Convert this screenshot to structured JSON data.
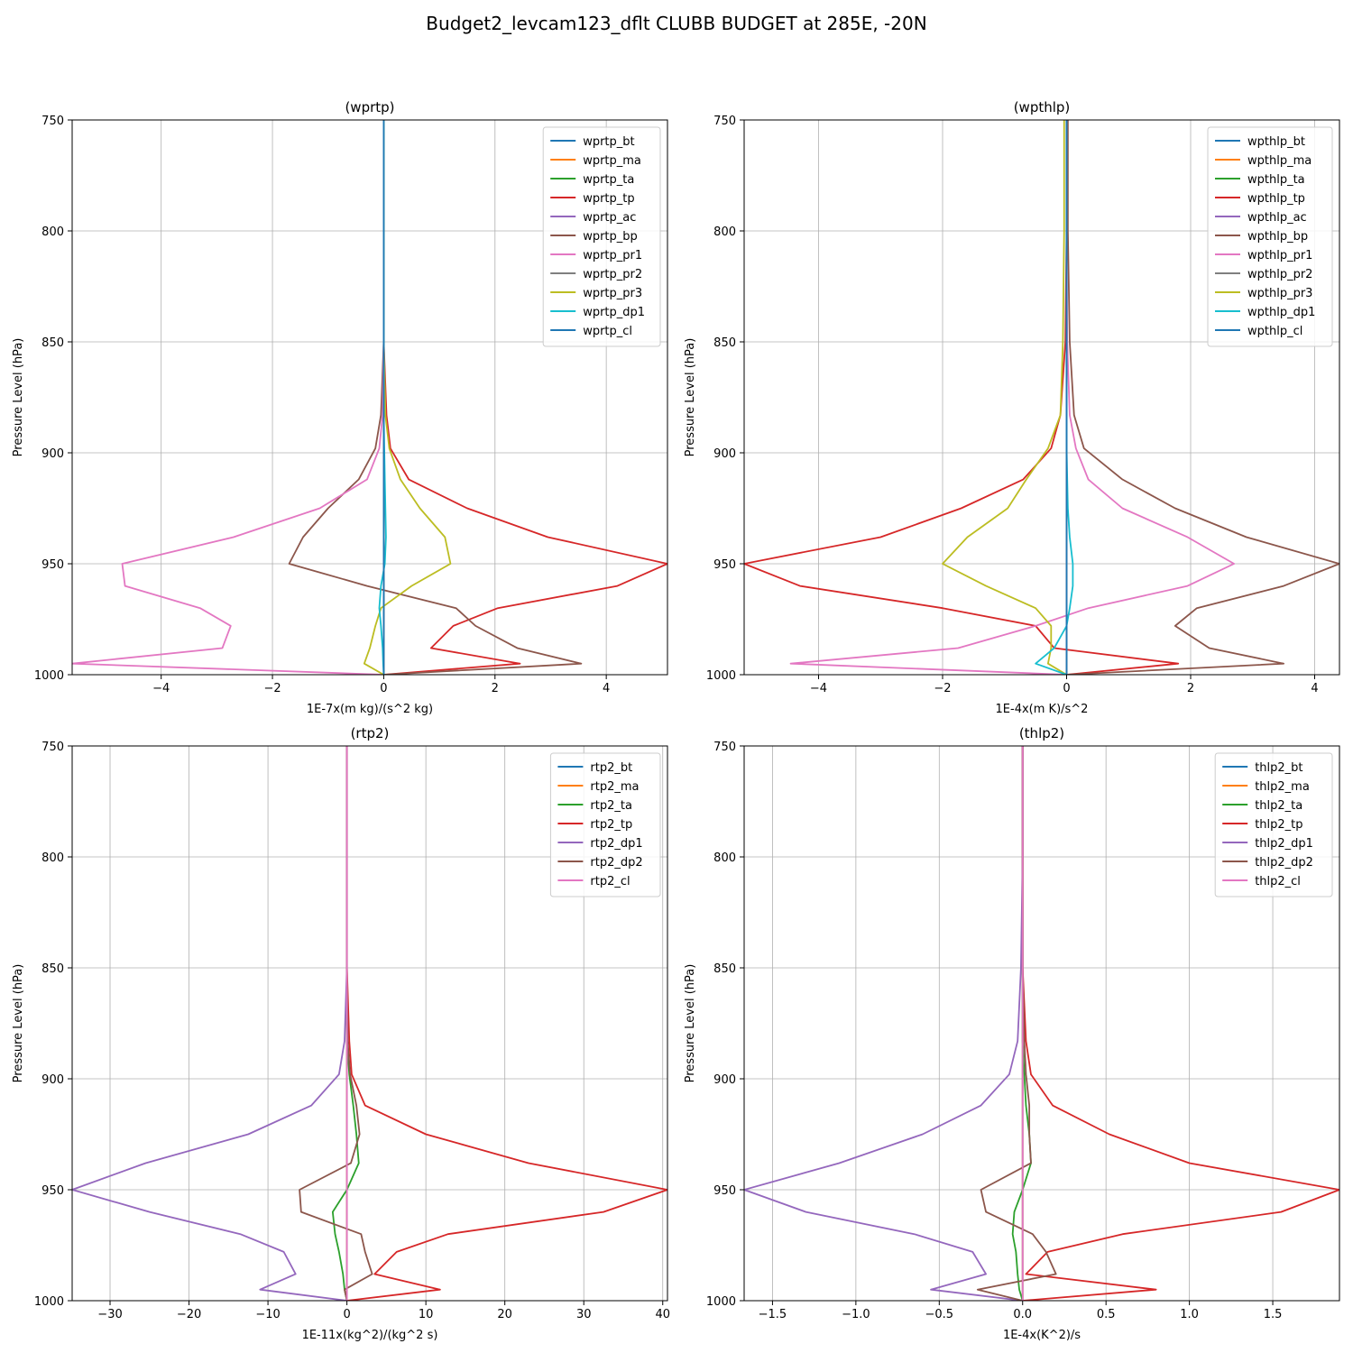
{
  "figure": {
    "suptitle": "Budget2_levcam123_dflt CLUBB BUDGET at 285E, -20N"
  },
  "chart_data": [
    {
      "type": "line",
      "title": "(wprtp)",
      "xlabel": "1E-7x(m kg)/(s^2 kg)",
      "ylabel": "Pressure Level (hPa)",
      "xlim": [
        -5.6,
        5.1
      ],
      "ylim": [
        1000,
        750
      ],
      "y_inverted": true,
      "xticks": [
        -4,
        -2,
        0,
        2,
        4
      ],
      "xtick_labels": [
        "−4",
        "−2",
        "0",
        "2",
        "4"
      ],
      "yticks": [
        750,
        800,
        850,
        900,
        950,
        1000
      ],
      "ytick_labels": [
        "750",
        "800",
        "850",
        "900",
        "950",
        "1000"
      ],
      "grid": true,
      "legend_position": "top-right",
      "levels": [
        750,
        800,
        850,
        883,
        898,
        912,
        925,
        938,
        950,
        960,
        970,
        978,
        988,
        995,
        1000
      ],
      "series": [
        {
          "name": "wprtp_bt",
          "color": "#1f77b4",
          "values": [
            0,
            0,
            0,
            0,
            0,
            0,
            0,
            0,
            0,
            0,
            0,
            0,
            0,
            0,
            0
          ]
        },
        {
          "name": "wprtp_ma",
          "color": "#ff7f0e",
          "values": [
            0,
            0,
            0,
            0,
            0,
            0,
            0,
            0,
            0,
            0,
            0,
            0,
            0,
            0,
            0
          ]
        },
        {
          "name": "wprtp_ta",
          "color": "#2ca02c",
          "values": [
            0,
            0,
            0,
            0,
            0,
            0,
            0,
            0,
            0,
            0,
            0,
            0,
            0,
            0,
            0
          ]
        },
        {
          "name": "wprtp_tp",
          "color": "#d62728",
          "values": [
            0,
            0,
            0,
            0.05,
            0.12,
            0.45,
            1.5,
            2.95,
            5.1,
            4.2,
            2.05,
            1.25,
            0.85,
            2.45,
            0
          ]
        },
        {
          "name": "wprtp_ac",
          "color": "#9467bd",
          "values": [
            0,
            0,
            0,
            0,
            0,
            0,
            0,
            0,
            0,
            0,
            0,
            0,
            0,
            0,
            0
          ]
        },
        {
          "name": "wprtp_bp",
          "color": "#8c564b",
          "values": [
            0,
            0,
            0,
            -0.05,
            -0.15,
            -0.45,
            -1.0,
            -1.45,
            -1.7,
            -0.3,
            1.3,
            1.65,
            2.4,
            3.55,
            0
          ]
        },
        {
          "name": "wprtp_pr1",
          "color": "#e377c2",
          "values": [
            0,
            0,
            0,
            -0.02,
            -0.08,
            -0.3,
            -1.15,
            -2.7,
            -4.7,
            -4.65,
            -3.3,
            -2.75,
            -2.9,
            -5.6,
            0
          ]
        },
        {
          "name": "wprtp_pr2",
          "color": "#7f7f7f",
          "values": [
            0,
            0,
            0,
            0,
            0,
            0,
            0,
            0,
            0,
            0,
            0,
            0,
            0,
            0,
            0
          ]
        },
        {
          "name": "wprtp_pr3",
          "color": "#bcbd22",
          "values": [
            0,
            0,
            0,
            0.03,
            0.1,
            0.3,
            0.65,
            1.1,
            1.2,
            0.5,
            -0.05,
            -0.15,
            -0.25,
            -0.35,
            0
          ]
        },
        {
          "name": "wprtp_dp1",
          "color": "#17becf",
          "values": [
            0,
            0,
            0,
            0,
            0.01,
            0.02,
            0.03,
            0.04,
            0.02,
            -0.05,
            -0.08,
            -0.05,
            -0.02,
            -0.01,
            0
          ]
        },
        {
          "name": "wprtp_cl",
          "color": "#1f77b4",
          "values": [
            0,
            0,
            0,
            0,
            0,
            0,
            0,
            0,
            0,
            0,
            0,
            0,
            0,
            0,
            0
          ]
        }
      ]
    },
    {
      "type": "line",
      "title": "(wpthlp)",
      "xlabel": "1E-4x(m K)/s^2",
      "ylabel": "Pressure Level (hPa)",
      "xlim": [
        -5.2,
        4.4
      ],
      "ylim": [
        1000,
        750
      ],
      "y_inverted": true,
      "xticks": [
        -4,
        -2,
        0,
        2,
        4
      ],
      "xtick_labels": [
        "−4",
        "−2",
        "0",
        "2",
        "4"
      ],
      "yticks": [
        750,
        800,
        850,
        900,
        950,
        1000
      ],
      "ytick_labels": [
        "750",
        "800",
        "850",
        "900",
        "950",
        "1000"
      ],
      "grid": true,
      "legend_position": "top-right",
      "levels": [
        750,
        800,
        850,
        883,
        898,
        912,
        925,
        938,
        950,
        960,
        970,
        978,
        988,
        995,
        1000
      ],
      "series": [
        {
          "name": "wpthlp_bt",
          "color": "#1f77b4",
          "values": [
            0,
            0,
            0,
            0,
            0,
            0,
            0,
            0,
            0,
            0,
            0,
            0,
            0,
            0,
            0
          ]
        },
        {
          "name": "wpthlp_ma",
          "color": "#ff7f0e",
          "values": [
            0,
            0,
            0,
            0,
            0,
            0,
            0,
            0,
            0,
            0,
            0,
            0,
            0,
            0,
            0
          ]
        },
        {
          "name": "wpthlp_ta",
          "color": "#2ca02c",
          "values": [
            0,
            0,
            0,
            0,
            0,
            0,
            0,
            0,
            0,
            0,
            0,
            0,
            0,
            0,
            0
          ]
        },
        {
          "name": "wpthlp_tp",
          "color": "#d62728",
          "values": [
            0,
            0,
            -0.02,
            -0.1,
            -0.25,
            -0.7,
            -1.7,
            -3.0,
            -5.2,
            -4.3,
            -2.0,
            -0.5,
            -0.2,
            1.8,
            0
          ]
        },
        {
          "name": "wpthlp_ac",
          "color": "#9467bd",
          "values": [
            0,
            0,
            0,
            0,
            0,
            0,
            0,
            0,
            0,
            0,
            0,
            0,
            0,
            0,
            0
          ]
        },
        {
          "name": "wpthlp_bp",
          "color": "#8c564b",
          "values": [
            0.02,
            0.02,
            0.05,
            0.12,
            0.28,
            0.9,
            1.75,
            2.9,
            4.4,
            3.5,
            2.1,
            1.75,
            2.3,
            3.5,
            0
          ]
        },
        {
          "name": "wpthlp_pr1",
          "color": "#e377c2",
          "values": [
            0,
            0,
            0.01,
            0.05,
            0.15,
            0.35,
            0.9,
            1.95,
            2.7,
            1.95,
            0.35,
            -0.5,
            -1.75,
            -4.45,
            0
          ]
        },
        {
          "name": "wpthlp_pr2",
          "color": "#7f7f7f",
          "values": [
            0,
            0,
            0,
            0,
            0,
            0,
            0,
            0,
            0,
            0,
            0,
            0,
            0,
            0,
            0
          ]
        },
        {
          "name": "wpthlp_pr3",
          "color": "#bcbd22",
          "values": [
            -0.04,
            -0.04,
            -0.06,
            -0.1,
            -0.3,
            -0.65,
            -0.95,
            -1.6,
            -2.0,
            -1.3,
            -0.5,
            -0.25,
            -0.25,
            -0.3,
            0
          ]
        },
        {
          "name": "wpthlp_dp1",
          "color": "#17becf",
          "values": [
            0,
            0,
            0,
            0,
            0,
            0.01,
            0.02,
            0.05,
            0.1,
            0.1,
            0.05,
            0,
            -0.2,
            -0.5,
            0
          ]
        },
        {
          "name": "wpthlp_cl",
          "color": "#1f77b4",
          "values": [
            0,
            0,
            0,
            0,
            0,
            0,
            0,
            0,
            0,
            0,
            0,
            0,
            0,
            0,
            0
          ]
        }
      ]
    },
    {
      "type": "line",
      "title": "(rtp2)",
      "xlabel": "1E-11x(kg^2)/(kg^2 s)",
      "ylabel": "Pressure Level (hPa)",
      "xlim": [
        -34.8,
        40.6
      ],
      "ylim": [
        1000,
        750
      ],
      "y_inverted": true,
      "xticks": [
        -30,
        -20,
        -10,
        0,
        10,
        20,
        30,
        40
      ],
      "xtick_labels": [
        "−30",
        "−20",
        "−10",
        "0",
        "10",
        "20",
        "30",
        "40"
      ],
      "yticks": [
        750,
        800,
        850,
        900,
        950,
        1000
      ],
      "ytick_labels": [
        "750",
        "800",
        "850",
        "900",
        "950",
        "1000"
      ],
      "grid": true,
      "legend_position": "top-right",
      "levels": [
        750,
        800,
        850,
        883,
        898,
        912,
        925,
        938,
        950,
        960,
        970,
        978,
        988,
        995,
        1000
      ],
      "series": [
        {
          "name": "rtp2_bt",
          "color": "#1f77b4",
          "values": [
            0,
            0,
            0,
            0,
            0,
            0,
            0,
            0,
            0,
            0,
            0,
            0,
            0,
            0,
            0
          ]
        },
        {
          "name": "rtp2_ma",
          "color": "#ff7f0e",
          "values": [
            0,
            0,
            0,
            0,
            0,
            0,
            0,
            0,
            0,
            0,
            0,
            0,
            0,
            0,
            0
          ]
        },
        {
          "name": "rtp2_ta",
          "color": "#2ca02c",
          "values": [
            0,
            0,
            0,
            0,
            0.3,
            0.8,
            1.2,
            1.5,
            0,
            -1.8,
            -1.5,
            -1.0,
            -0.5,
            -0.3,
            0
          ]
        },
        {
          "name": "rtp2_tp",
          "color": "#d62728",
          "values": [
            0,
            0,
            0,
            0.3,
            0.6,
            2.3,
            10.0,
            23.0,
            40.6,
            32.5,
            12.8,
            6.3,
            3.5,
            11.8,
            0
          ]
        },
        {
          "name": "rtp2_dp1",
          "color": "#9467bd",
          "values": [
            0,
            0,
            0,
            -0.3,
            -1.0,
            -4.5,
            -12.5,
            -25.5,
            -34.8,
            -25.0,
            -13.5,
            -8.0,
            -6.5,
            -11.0,
            0
          ]
        },
        {
          "name": "rtp2_dp2",
          "color": "#8c564b",
          "values": [
            0,
            0,
            0,
            0.1,
            0.4,
            1.2,
            1.6,
            0.5,
            -6.0,
            -5.8,
            1.8,
            2.3,
            3.2,
            -0.3,
            0
          ]
        },
        {
          "name": "rtp2_cl",
          "color": "#e377c2",
          "values": [
            0,
            0,
            0,
            0,
            0,
            0,
            0,
            0,
            0,
            0,
            0,
            0,
            0,
            0,
            0
          ]
        }
      ]
    },
    {
      "type": "line",
      "title": "(thlp2)",
      "xlabel": "1E-4x(K^2)/s",
      "ylabel": "Pressure Level (hPa)",
      "xlim": [
        -1.67,
        1.9
      ],
      "ylim": [
        1000,
        750
      ],
      "y_inverted": true,
      "xticks": [
        -1.5,
        -1.0,
        -0.5,
        0.0,
        0.5,
        1.0,
        1.5
      ],
      "xtick_labels": [
        "−1.5",
        "−1.0",
        "−0.5",
        "0.0",
        "0.5",
        "1.0",
        "1.5"
      ],
      "yticks": [
        750,
        800,
        850,
        900,
        950,
        1000
      ],
      "ytick_labels": [
        "750",
        "800",
        "850",
        "900",
        "950",
        "1000"
      ],
      "grid": true,
      "legend_position": "top-right",
      "levels": [
        750,
        800,
        850,
        883,
        898,
        912,
        925,
        938,
        950,
        960,
        970,
        978,
        988,
        995,
        1000
      ],
      "series": [
        {
          "name": "thlp2_bt",
          "color": "#1f77b4",
          "values": [
            0,
            0,
            0,
            0,
            0,
            0,
            0,
            0,
            0,
            0,
            0,
            0,
            0,
            0,
            0
          ]
        },
        {
          "name": "thlp2_ma",
          "color": "#ff7f0e",
          "values": [
            0,
            0,
            0,
            0,
            0,
            0,
            0,
            0,
            0,
            0,
            0,
            0,
            0,
            0,
            0
          ]
        },
        {
          "name": "thlp2_ta",
          "color": "#2ca02c",
          "values": [
            0,
            0,
            0,
            0,
            0.01,
            0.02,
            0.04,
            0.05,
            0,
            -0.05,
            -0.06,
            -0.04,
            -0.03,
            -0.02,
            0
          ]
        },
        {
          "name": "thlp2_tp",
          "color": "#d62728",
          "values": [
            0,
            0,
            0,
            0.02,
            0.05,
            0.18,
            0.52,
            1.0,
            1.9,
            1.55,
            0.6,
            0.15,
            0.02,
            0.8,
            0
          ]
        },
        {
          "name": "thlp2_dp1",
          "color": "#9467bd",
          "values": [
            0,
            0,
            -0.01,
            -0.03,
            -0.08,
            -0.25,
            -0.6,
            -1.1,
            -1.67,
            -1.3,
            -0.65,
            -0.3,
            -0.22,
            -0.55,
            0
          ]
        },
        {
          "name": "thlp2_dp2",
          "color": "#8c564b",
          "values": [
            0,
            0,
            0,
            0.01,
            0.02,
            0.04,
            0.04,
            0.05,
            -0.25,
            -0.22,
            0.06,
            0.14,
            0.2,
            -0.27,
            0
          ]
        },
        {
          "name": "thlp2_cl",
          "color": "#e377c2",
          "values": [
            0,
            0,
            0,
            0,
            0,
            0,
            0,
            0,
            0,
            0,
            0,
            0,
            0,
            0,
            0
          ]
        }
      ]
    }
  ]
}
